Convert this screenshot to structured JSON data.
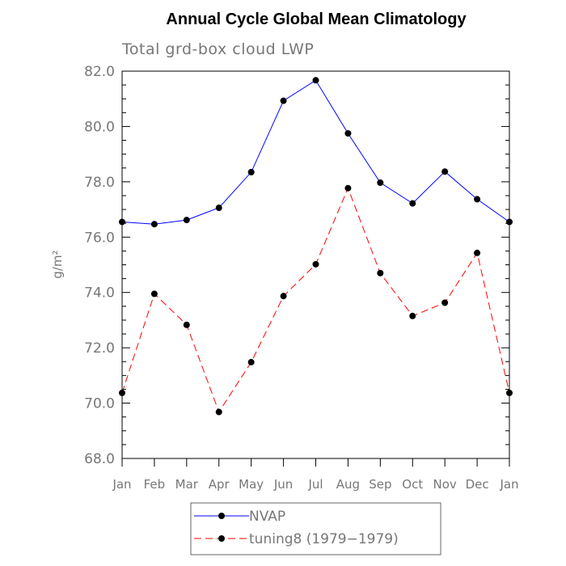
{
  "chart_data": {
    "type": "line",
    "title": "Annual Cycle Global Mean Climatology",
    "subtitle": "Total grd-box cloud LWP",
    "ylabel": "g/m²",
    "xlabel": "",
    "categories": [
      "Jan",
      "Feb",
      "Mar",
      "Apr",
      "May",
      "Jun",
      "Jul",
      "Aug",
      "Sep",
      "Oct",
      "Nov",
      "Dec",
      "Jan"
    ],
    "ylim": [
      68.0,
      82.0
    ],
    "yticks": [
      "68.0",
      "70.0",
      "72.0",
      "74.0",
      "76.0",
      "78.0",
      "80.0",
      "82.0"
    ],
    "legend_position": "bottom",
    "series": [
      {
        "name": "NVAP",
        "color": "#0000ff",
        "dash": "solid",
        "values": [
          76.55,
          76.47,
          76.62,
          77.06,
          78.35,
          80.93,
          81.67,
          79.75,
          77.97,
          77.22,
          78.37,
          77.37,
          76.55
        ]
      },
      {
        "name": "tuning8 (1979−1979)",
        "color": "#ff0000",
        "dash": "dashed",
        "values": [
          70.37,
          73.95,
          72.83,
          69.68,
          71.48,
          73.87,
          75.02,
          77.77,
          74.7,
          73.15,
          73.63,
          75.43,
          70.37
        ]
      }
    ]
  }
}
